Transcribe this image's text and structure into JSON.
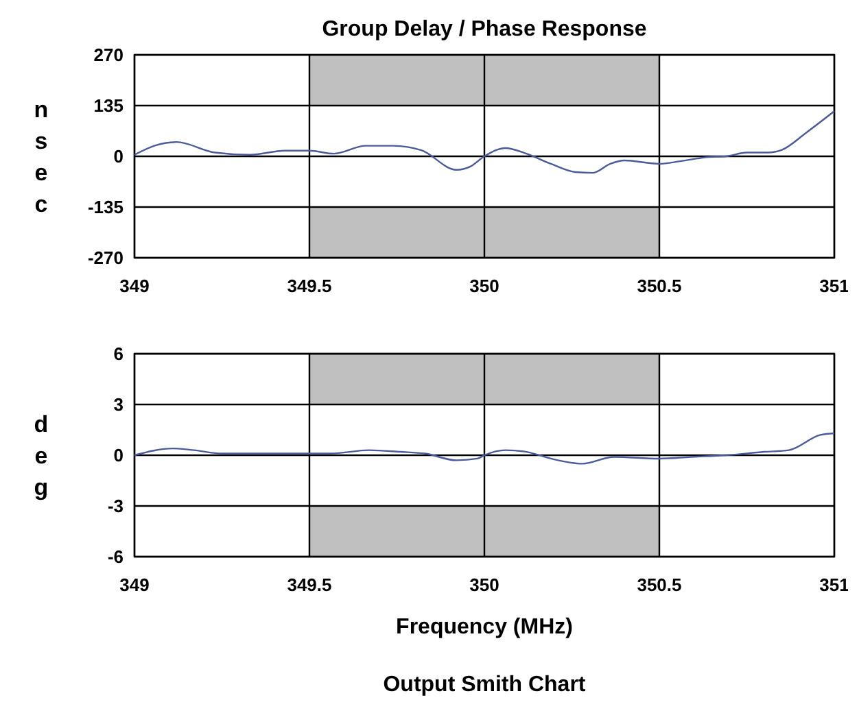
{
  "chart_data": [
    {
      "type": "line",
      "title": "Group Delay / Phase Response",
      "ylabel": "nsec",
      "xlim": [
        349,
        351
      ],
      "xticks": [
        349,
        349.5,
        350,
        350.5,
        351
      ],
      "ylim": [
        -270,
        270
      ],
      "yticks": [
        270,
        135,
        0,
        -135,
        -270
      ],
      "grid": true,
      "series": [
        {
          "type": "bar",
          "color": "#c0c0c0",
          "x": [
            350
          ],
          "base": [
            135
          ],
          "values": [
            135
          ]
        },
        {
          "type": "bar",
          "color": "#c0c0c0",
          "x": [
            350
          ],
          "base": [
            -270
          ],
          "values": [
            135
          ]
        },
        {
          "color": "#4a5a9a",
          "x": [
            349,
            349.06,
            349.12,
            349.23,
            349.33,
            349.43,
            349.5,
            349.57,
            349.66,
            349.74,
            349.82,
            349.92,
            349.96,
            350,
            350.06,
            350.12,
            350.19,
            350.26,
            350.31,
            350.36,
            350.4,
            350.5,
            350.56,
            350.64,
            350.69,
            350.75,
            350.81,
            350.85,
            350.92,
            351
          ],
          "values": [
            4,
            29,
            38,
            10,
            4,
            15,
            15,
            7,
            28,
            28,
            16,
            -36,
            -27,
            0,
            22,
            7,
            -20,
            -42,
            -44,
            -20,
            -11,
            -20,
            -13,
            -2,
            0,
            10,
            10,
            17,
            63,
            120
          ]
        }
      ]
    },
    {
      "type": "line",
      "ylabel": "deg",
      "xlabel": "Frequency (MHz)",
      "annotations": [
        "Output Smith Chart"
      ],
      "xlim": [
        349,
        351
      ],
      "xticks": [
        349,
        349.5,
        350,
        350.5,
        351
      ],
      "ylim": [
        -6,
        6
      ],
      "yticks": [
        6,
        3,
        0,
        -3,
        -6
      ],
      "grid": true,
      "series": [
        {
          "type": "bar",
          "color": "#c0c0c0",
          "x": [
            350
          ],
          "base": [
            3
          ],
          "values": [
            3
          ]
        },
        {
          "type": "bar",
          "color": "#c0c0c0",
          "x": [
            350
          ],
          "base": [
            -6
          ],
          "values": [
            3
          ]
        },
        {
          "color": "#4a5a9a",
          "x": [
            349,
            349.11,
            349.17,
            349.25,
            349.41,
            349.56,
            349.67,
            349.76,
            349.83,
            349.92,
            349.98,
            350,
            350.06,
            350.12,
            350.19,
            350.28,
            350.37,
            350.5,
            350.59,
            350.69,
            350.8,
            350.87,
            350.96,
            351
          ],
          "values": [
            0,
            0.4,
            0.3,
            0.1,
            0.1,
            0.1,
            0.3,
            0.2,
            0.1,
            -0.3,
            -0.2,
            0,
            0.3,
            0.2,
            -0.2,
            -0.5,
            -0.1,
            -0.2,
            -0.1,
            0,
            0.2,
            0.3,
            1.2,
            1.3
          ]
        }
      ]
    }
  ]
}
